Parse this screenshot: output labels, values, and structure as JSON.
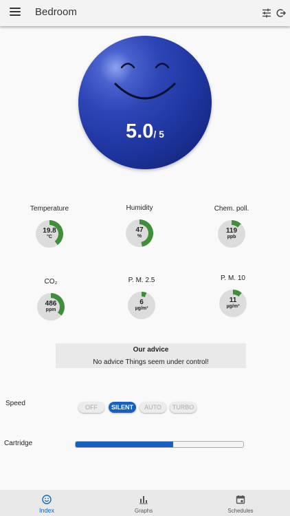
{
  "header": {
    "title": "Bedroom"
  },
  "score": {
    "value": "5.0",
    "max": "/ 5",
    "color": "#1f36a1"
  },
  "sensors": [
    {
      "label": "Temperature",
      "value": "19.8",
      "unit": "°C",
      "fill": 0.4
    },
    {
      "label": "Humidity",
      "value": "47",
      "unit": "%",
      "fill": 0.47
    },
    {
      "label": "Chem. poll.",
      "value": "119",
      "unit": "ppb",
      "fill": 0.12
    },
    {
      "label": "CO₂",
      "value": "486",
      "unit": "ppm",
      "fill": 0.36
    },
    {
      "label": "P. M. 2.5",
      "value": "6",
      "unit": "µg/m³",
      "fill": 0.06
    },
    {
      "label": "P. M. 10",
      "value": "11",
      "unit": "µg/m³",
      "fill": 0.11
    }
  ],
  "advice": {
    "title": "Our advice",
    "text": "No advice Things seem under control!"
  },
  "speed": {
    "label": "Speed",
    "options": [
      "OFF",
      "SILENT",
      "AUTO",
      "TURBO"
    ],
    "selected": "SILENT"
  },
  "cartridge": {
    "label": "Cartridge",
    "level": 0.58
  },
  "nav": {
    "items": [
      {
        "label": "Index",
        "icon": "smiley-icon",
        "active": true
      },
      {
        "label": "Graphs",
        "icon": "bar-chart-icon",
        "active": false
      },
      {
        "label": "Schedules",
        "icon": "calendar-icon",
        "active": false
      }
    ]
  },
  "colors": {
    "accent": "#1560c0",
    "gauge_fill": "#3f8f3a",
    "gauge_track": "#dcdcdc"
  }
}
